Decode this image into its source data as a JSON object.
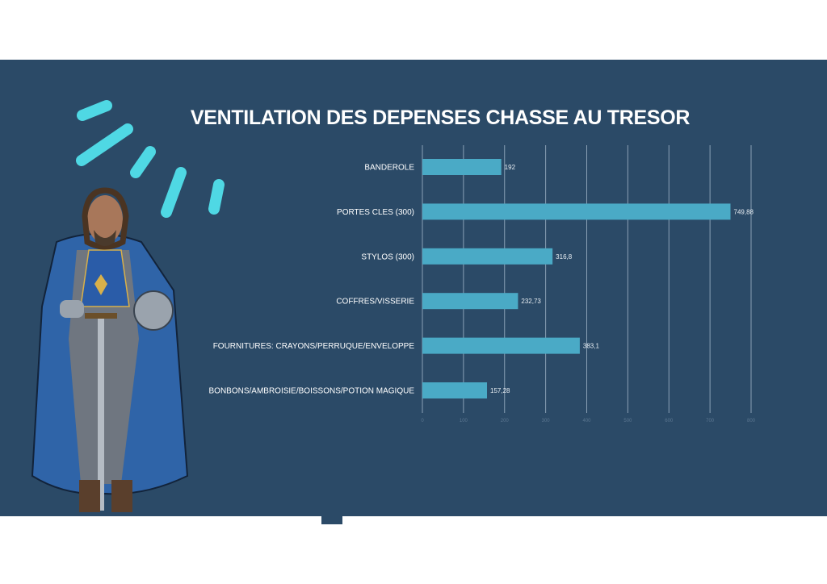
{
  "colors": {
    "background": "#2b4a67",
    "bar": "#4aaac6",
    "accent": "#4fd8e4",
    "grid": "#8aa0b5"
  },
  "chart_data": {
    "type": "bar",
    "orientation": "horizontal",
    "title": "VENTILATION DES DEPENSES CHASSE AU TRESOR",
    "categories": [
      "BANDEROLE",
      "PORTES CLES (300)",
      "STYLOS (300)",
      "COFFRES/VISSERIE",
      "FOURNITURES: CRAYONS/PERRUQUE/ENVELOPPE",
      "BONBONS/AMBROISIE/BOISSONS/POTION MAGIQUE"
    ],
    "values": [
      192,
      749.88,
      316.8,
      232.73,
      383.1,
      157.28
    ],
    "data_labels": [
      "192",
      "749,88",
      "316,8",
      "232,73",
      "383,1",
      "157,28"
    ],
    "xlim": [
      0,
      800
    ],
    "xticks": [
      "0",
      "100",
      "200",
      "300",
      "400",
      "500",
      "600",
      "700",
      "800"
    ],
    "grid": true,
    "legend": "none"
  },
  "illustration": "knight-in-blue-cloak"
}
